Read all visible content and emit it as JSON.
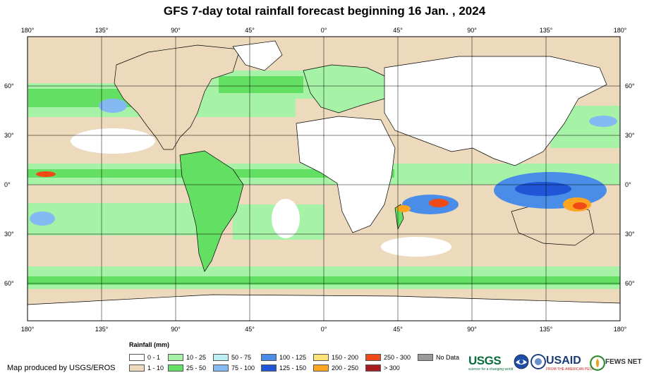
{
  "title": "GFS 7-day total rainfall forecast beginning 16 Jan. , 2024",
  "longitude_ticks": [
    "180°",
    "135°",
    "90°",
    "45°",
    "0°",
    "45°",
    "90°",
    "135°",
    "180°"
  ],
  "latitude_ticks": [
    "60°",
    "30°",
    "0°",
    "30°",
    "60°"
  ],
  "legend": {
    "title": "Rainfall (mm)",
    "items": [
      {
        "label": "0 - 1",
        "color": "#ffffff"
      },
      {
        "label": "1 - 10",
        "color": "#edd9bc"
      },
      {
        "label": "10 - 25",
        "color": "#a6f2a6"
      },
      {
        "label": "25 - 50",
        "color": "#63e063"
      },
      {
        "label": "50 - 75",
        "color": "#bdf0f5"
      },
      {
        "label": "75 - 100",
        "color": "#84b9f2"
      },
      {
        "label": "100 - 125",
        "color": "#4a8de8"
      },
      {
        "label": "125 - 150",
        "color": "#1f55d6"
      },
      {
        "label": "150 - 200",
        "color": "#ffe27a"
      },
      {
        "label": "200 - 250",
        "color": "#ffa51f"
      },
      {
        "label": "250 - 300",
        "color": "#f04a17"
      },
      {
        "label": "> 300",
        "color": "#a61c1c"
      },
      {
        "label": "No Data",
        "color": "#9a9a9a"
      }
    ]
  },
  "credit": "Map produced by USGS/EROS",
  "logos": {
    "usgs": "USGS",
    "usgs_tagline": "science for a changing world",
    "usaid": "USAID",
    "usaid_tagline": "FROM THE AMERICAN PEOPLE",
    "fews": "FEWS NET"
  }
}
